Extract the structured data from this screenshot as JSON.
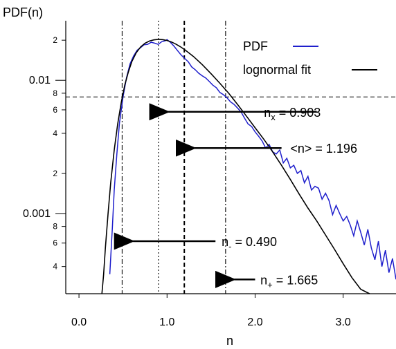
{
  "chart_data": {
    "type": "line",
    "ylabel": "PDF(n)",
    "xlabel": "n",
    "xlim": [
      -0.15,
      3.6
    ],
    "yscale": "log",
    "ylim": [
      0.00025,
      0.028
    ],
    "grid": false,
    "legend_position": "top-right",
    "x_ticks": [
      0.0,
      1.0,
      2.0,
      3.0
    ],
    "x_tick_labels": [
      "0.0",
      "1.0",
      "2.0",
      "3.0"
    ],
    "y_major_ticks": [
      {
        "value": 0.01,
        "label": "0.01"
      },
      {
        "value": 0.001,
        "label": "0.001"
      }
    ],
    "y_minor_labeled": [
      {
        "value": 0.02,
        "label": "2"
      },
      {
        "value": 0.008,
        "label": "8"
      },
      {
        "value": 0.006,
        "label": "6"
      },
      {
        "value": 0.004,
        "label": "4"
      },
      {
        "value": 0.002,
        "label": "2"
      },
      {
        "value": 0.0008,
        "label": "8"
      },
      {
        "value": 0.0006,
        "label": "6"
      },
      {
        "value": 0.0004,
        "label": "4"
      }
    ],
    "series": [
      {
        "name": "PDF",
        "color": "#1f1fcc",
        "x": [
          0.35,
          0.38,
          0.4,
          0.43,
          0.46,
          0.5,
          0.54,
          0.58,
          0.62,
          0.66,
          0.7,
          0.74,
          0.78,
          0.82,
          0.86,
          0.9,
          0.94,
          0.98,
          1.0,
          1.04,
          1.08,
          1.12,
          1.16,
          1.2,
          1.24,
          1.28,
          1.32,
          1.36,
          1.4,
          1.44,
          1.48,
          1.52,
          1.56,
          1.6,
          1.64,
          1.68,
          1.72,
          1.76,
          1.8,
          1.84,
          1.88,
          1.92,
          1.96,
          2.0,
          2.04,
          2.08,
          2.12,
          2.16,
          2.2,
          2.24,
          2.28,
          2.32,
          2.36,
          2.4,
          2.44,
          2.48,
          2.52,
          2.56,
          2.6,
          2.64,
          2.68,
          2.72,
          2.76,
          2.8,
          2.84,
          2.88,
          2.92,
          2.96,
          3.0,
          3.04,
          3.08,
          3.12,
          3.16,
          3.2,
          3.24,
          3.28,
          3.32,
          3.36,
          3.4,
          3.44,
          3.48,
          3.52,
          3.56,
          3.6
        ],
        "values": [
          0.00035,
          0.0008,
          0.0015,
          0.0028,
          0.0048,
          0.0075,
          0.0105,
          0.0133,
          0.0152,
          0.0168,
          0.0176,
          0.0185,
          0.0186,
          0.0193,
          0.019,
          0.0186,
          0.0195,
          0.0198,
          0.0202,
          0.0192,
          0.018,
          0.0167,
          0.0155,
          0.0146,
          0.0138,
          0.0126,
          0.012,
          0.0113,
          0.0108,
          0.0104,
          0.0098,
          0.0092,
          0.0088,
          0.0081,
          0.0078,
          0.0074,
          0.0069,
          0.0066,
          0.0062,
          0.0058,
          0.0052,
          0.0047,
          0.0045,
          0.0041,
          0.0038,
          0.0035,
          0.0031,
          0.0033,
          0.0029,
          0.0028,
          0.003,
          0.0024,
          0.0026,
          0.0022,
          0.0023,
          0.002,
          0.0021,
          0.0017,
          0.0019,
          0.0015,
          0.0016,
          0.00155,
          0.00128,
          0.00142,
          0.00125,
          0.00098,
          0.00115,
          0.001,
          0.00088,
          0.00095,
          0.00082,
          0.00068,
          0.00088,
          0.00072,
          0.00058,
          0.00076,
          0.00055,
          0.00045,
          0.00062,
          0.0004,
          0.00053,
          0.00036,
          0.00046,
          0.00032
        ]
      },
      {
        "name": "lognormal fit",
        "color": "#000000",
        "x": [
          0.26,
          0.28,
          0.3,
          0.33,
          0.36,
          0.4,
          0.44,
          0.48,
          0.52,
          0.56,
          0.6,
          0.65,
          0.7,
          0.75,
          0.8,
          0.85,
          0.9,
          0.95,
          1.0,
          1.05,
          1.1,
          1.15,
          1.2,
          1.3,
          1.4,
          1.5,
          1.6,
          1.7,
          1.8,
          1.9,
          2.0,
          2.1,
          2.2,
          2.3,
          2.4,
          2.5,
          2.6,
          2.7,
          2.8,
          2.9,
          3.0,
          3.1,
          3.2,
          3.3
        ],
        "values": [
          0.00025,
          0.00035,
          0.00055,
          0.001,
          0.0017,
          0.003,
          0.0047,
          0.0068,
          0.0092,
          0.0115,
          0.0138,
          0.0161,
          0.0178,
          0.019,
          0.0197,
          0.0201,
          0.0203,
          0.0202,
          0.0199,
          0.0194,
          0.0187,
          0.0179,
          0.017,
          0.0151,
          0.0131,
          0.0112,
          0.0095,
          0.008,
          0.0066,
          0.0054,
          0.0044,
          0.0036,
          0.0029,
          0.0023,
          0.0018,
          0.0014,
          0.0011,
          0.00088,
          0.00069,
          0.00054,
          0.00042,
          0.00033,
          0.00027,
          0.00025
        ]
      }
    ],
    "reference_lines": [
      {
        "orientation": "vertical",
        "x": 0.49,
        "style": "dash-dot"
      },
      {
        "orientation": "vertical",
        "x": 0.903,
        "style": "dotted"
      },
      {
        "orientation": "vertical",
        "x": 1.196,
        "style": "dashed"
      },
      {
        "orientation": "vertical",
        "x": 1.665,
        "style": "dash-dot"
      },
      {
        "orientation": "horizontal",
        "y": 0.0075,
        "style": "dashed"
      }
    ],
    "annotations": [
      {
        "main": "n",
        "sub": "x",
        "sup": "",
        "rest": "  = 0.903",
        "arrow_from_x": 2.7,
        "arrow_to_x": 0.92,
        "y": 0.0058,
        "text_x": 2.1
      },
      {
        "main": "<n> = 1.196",
        "sub": "",
        "sup": "",
        "rest": "",
        "arrow_from_x": 2.3,
        "arrow_to_x": 1.22,
        "y": 0.0031,
        "text_x": 2.4
      },
      {
        "main": "n",
        "sub": "-",
        "sup": "",
        "rest": " = 0.490",
        "arrow_from_x": 1.55,
        "arrow_to_x": 0.52,
        "y": 0.00062,
        "text_x": 1.62
      },
      {
        "main": "n",
        "sub": "+",
        "sup": "",
        "rest": " = 1.665",
        "arrow_from_x": 2.0,
        "arrow_to_x": 1.67,
        "y": 0.00032,
        "text_x": 2.06
      }
    ]
  }
}
